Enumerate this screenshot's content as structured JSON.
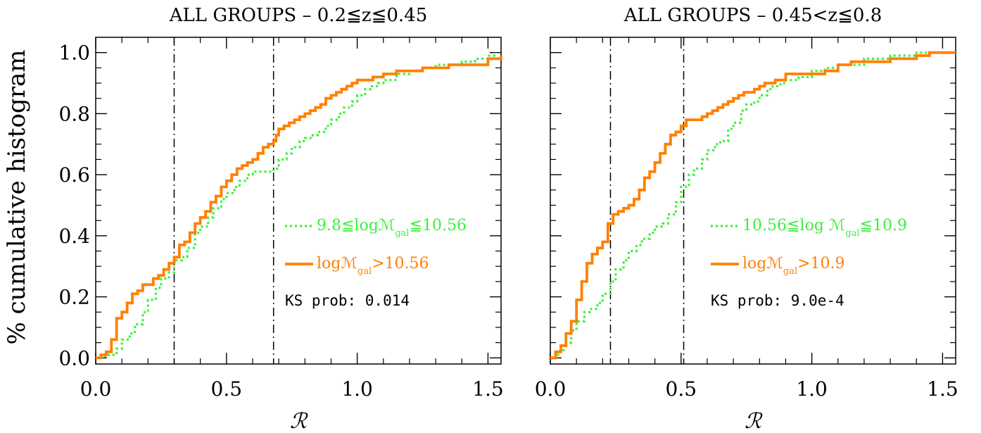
{
  "colors": {
    "green": "#3cf03c",
    "orange": "#ff8000",
    "frame": "#000000"
  },
  "ylabel": "% cumulative histogram",
  "chart_data": [
    {
      "type": "line",
      "title": "ALL GROUPS – 0.2≦z≦0.45",
      "xlabel": "ℛ",
      "ylabel": "% cumulative histogram",
      "xlim": [
        0,
        1.55
      ],
      "ylim": [
        -0.02,
        1.05
      ],
      "xticks": [
        0.0,
        0.5,
        1.0,
        1.5
      ],
      "xtick_labels": [
        "0.0",
        "0.5",
        "1.0",
        "1.5"
      ],
      "yticks": [
        0.0,
        0.2,
        0.4,
        0.6,
        0.8,
        1.0
      ],
      "ytick_labels": [
        "0.0",
        "0.2",
        "0.4",
        "0.6",
        "0.8",
        "1.0"
      ],
      "vlines": [
        0.3,
        0.68
      ],
      "ks_text": "KS prob: 0.014",
      "series": [
        {
          "label_main": "9.8≦logℳ",
          "label_sub": "gal",
          "label_tail": "≦10.56",
          "color": "green",
          "style": "dotted",
          "x": [
            0.0,
            0.03,
            0.05,
            0.08,
            0.1,
            0.13,
            0.15,
            0.18,
            0.2,
            0.23,
            0.25,
            0.28,
            0.3,
            0.33,
            0.35,
            0.38,
            0.4,
            0.43,
            0.45,
            0.48,
            0.5,
            0.53,
            0.55,
            0.58,
            0.6,
            0.63,
            0.65,
            0.68,
            0.7,
            0.73,
            0.75,
            0.78,
            0.8,
            0.83,
            0.85,
            0.88,
            0.9,
            0.93,
            0.95,
            0.98,
            1.0,
            1.03,
            1.05,
            1.08,
            1.1,
            1.15,
            1.2,
            1.25,
            1.3,
            1.35,
            1.4,
            1.45,
            1.5,
            1.53
          ],
          "y": [
            0.0,
            0.005,
            0.01,
            0.03,
            0.06,
            0.08,
            0.11,
            0.15,
            0.19,
            0.23,
            0.26,
            0.28,
            0.32,
            0.33,
            0.36,
            0.41,
            0.43,
            0.46,
            0.49,
            0.52,
            0.54,
            0.56,
            0.58,
            0.6,
            0.61,
            0.61,
            0.61,
            0.62,
            0.65,
            0.67,
            0.69,
            0.71,
            0.72,
            0.73,
            0.74,
            0.76,
            0.78,
            0.8,
            0.82,
            0.84,
            0.86,
            0.88,
            0.89,
            0.9,
            0.91,
            0.93,
            0.94,
            0.95,
            0.96,
            0.96,
            0.97,
            0.98,
            0.99,
            1.0
          ]
        },
        {
          "label_main": "logℳ",
          "label_sub": "gal",
          "label_tail": ">10.56",
          "color": "orange",
          "style": "solid",
          "x": [
            0.0,
            0.02,
            0.04,
            0.06,
            0.08,
            0.1,
            0.12,
            0.14,
            0.16,
            0.18,
            0.2,
            0.22,
            0.24,
            0.26,
            0.28,
            0.3,
            0.32,
            0.34,
            0.36,
            0.38,
            0.4,
            0.42,
            0.44,
            0.46,
            0.48,
            0.5,
            0.52,
            0.54,
            0.56,
            0.58,
            0.6,
            0.62,
            0.64,
            0.66,
            0.68,
            0.69,
            0.7,
            0.72,
            0.74,
            0.76,
            0.78,
            0.8,
            0.82,
            0.84,
            0.86,
            0.88,
            0.9,
            0.92,
            0.94,
            0.96,
            0.98,
            1.0,
            1.03,
            1.06,
            1.1,
            1.15,
            1.2,
            1.25,
            1.3,
            1.35,
            1.4,
            1.45,
            1.5,
            1.55
          ],
          "y": [
            0.0,
            0.01,
            0.02,
            0.06,
            0.13,
            0.15,
            0.18,
            0.21,
            0.22,
            0.24,
            0.24,
            0.26,
            0.27,
            0.29,
            0.31,
            0.33,
            0.37,
            0.38,
            0.41,
            0.44,
            0.46,
            0.48,
            0.51,
            0.53,
            0.56,
            0.58,
            0.6,
            0.62,
            0.63,
            0.64,
            0.65,
            0.67,
            0.69,
            0.7,
            0.71,
            0.73,
            0.75,
            0.76,
            0.77,
            0.78,
            0.79,
            0.8,
            0.81,
            0.82,
            0.83,
            0.85,
            0.86,
            0.87,
            0.88,
            0.89,
            0.9,
            0.91,
            0.91,
            0.92,
            0.93,
            0.94,
            0.94,
            0.95,
            0.95,
            0.96,
            0.96,
            0.96,
            0.98,
            0.99
          ]
        }
      ]
    },
    {
      "type": "line",
      "title": "ALL GROUPS – 0.45<z≦0.8",
      "xlabel": "ℛ",
      "ylabel": "",
      "xlim": [
        0,
        1.55
      ],
      "ylim": [
        -0.02,
        1.05
      ],
      "xticks": [
        0.0,
        0.5,
        1.0,
        1.5
      ],
      "xtick_labels": [
        "0.0",
        "0.5",
        "1.0",
        "1.5"
      ],
      "yticks": [
        0.0,
        0.2,
        0.4,
        0.6,
        0.8,
        1.0
      ],
      "ytick_labels": [],
      "vlines": [
        0.23,
        0.51
      ],
      "ks_text": "KS prob: 9.0e-4",
      "series": [
        {
          "label_main": "10.56≦log ℳ",
          "label_sub": "gal",
          "label_tail": "≦10.9",
          "color": "green",
          "style": "dotted",
          "x": [
            0.0,
            0.03,
            0.05,
            0.08,
            0.1,
            0.13,
            0.15,
            0.18,
            0.2,
            0.23,
            0.25,
            0.28,
            0.3,
            0.33,
            0.35,
            0.38,
            0.4,
            0.43,
            0.45,
            0.48,
            0.5,
            0.53,
            0.55,
            0.58,
            0.6,
            0.63,
            0.65,
            0.68,
            0.7,
            0.73,
            0.75,
            0.78,
            0.8,
            0.83,
            0.85,
            0.88,
            0.9,
            0.95,
            1.0,
            1.05,
            1.1,
            1.2,
            1.3,
            1.4,
            1.5,
            1.55
          ],
          "y": [
            0.0,
            0.02,
            0.05,
            0.09,
            0.12,
            0.15,
            0.16,
            0.18,
            0.21,
            0.25,
            0.29,
            0.32,
            0.35,
            0.37,
            0.39,
            0.41,
            0.43,
            0.44,
            0.47,
            0.51,
            0.56,
            0.6,
            0.62,
            0.65,
            0.68,
            0.7,
            0.71,
            0.75,
            0.77,
            0.81,
            0.83,
            0.84,
            0.86,
            0.88,
            0.89,
            0.9,
            0.91,
            0.92,
            0.94,
            0.95,
            0.96,
            0.98,
            0.99,
            1.0,
            1.0,
            1.0
          ]
        },
        {
          "label_main": "logℳ",
          "label_sub": "gal",
          "label_tail": ">10.9",
          "color": "orange",
          "style": "solid",
          "x": [
            0.0,
            0.02,
            0.04,
            0.06,
            0.08,
            0.1,
            0.12,
            0.14,
            0.16,
            0.18,
            0.2,
            0.22,
            0.24,
            0.26,
            0.28,
            0.3,
            0.32,
            0.34,
            0.36,
            0.38,
            0.4,
            0.42,
            0.44,
            0.46,
            0.48,
            0.5,
            0.52,
            0.54,
            0.56,
            0.58,
            0.6,
            0.62,
            0.64,
            0.66,
            0.68,
            0.7,
            0.72,
            0.74,
            0.76,
            0.78,
            0.8,
            0.82,
            0.84,
            0.86,
            0.88,
            0.9,
            0.95,
            1.0,
            1.05,
            1.1,
            1.15,
            1.2,
            1.3,
            1.35,
            1.4,
            1.45,
            1.5,
            1.55
          ],
          "y": [
            0.0,
            0.02,
            0.04,
            0.08,
            0.12,
            0.19,
            0.25,
            0.31,
            0.34,
            0.36,
            0.38,
            0.44,
            0.47,
            0.48,
            0.49,
            0.5,
            0.52,
            0.55,
            0.59,
            0.61,
            0.64,
            0.67,
            0.7,
            0.73,
            0.74,
            0.76,
            0.78,
            0.78,
            0.78,
            0.79,
            0.8,
            0.81,
            0.82,
            0.83,
            0.84,
            0.85,
            0.86,
            0.87,
            0.87,
            0.88,
            0.89,
            0.9,
            0.9,
            0.91,
            0.91,
            0.93,
            0.93,
            0.93,
            0.94,
            0.96,
            0.97,
            0.97,
            0.98,
            0.98,
            0.99,
            1.0,
            1.0,
            1.0
          ]
        }
      ]
    }
  ]
}
